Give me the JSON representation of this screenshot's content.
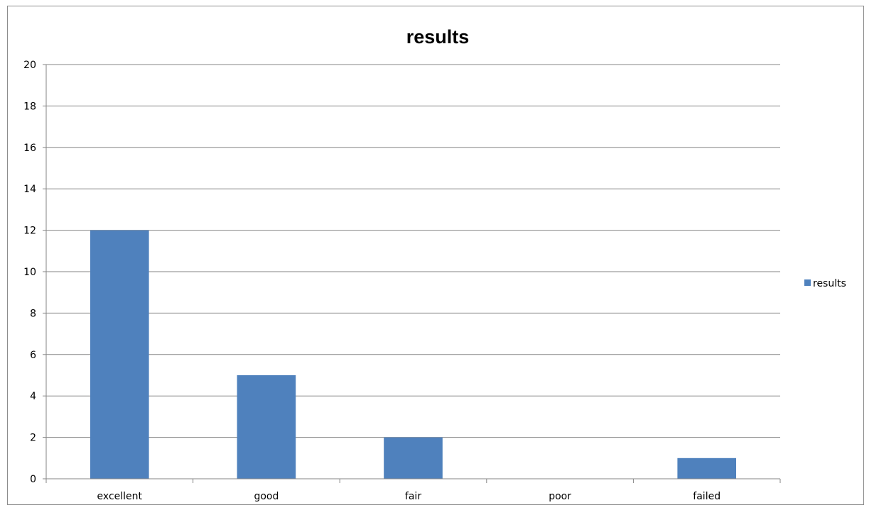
{
  "chart_data": {
    "type": "bar",
    "title": "results",
    "xlabel": "",
    "ylabel": "",
    "categories": [
      "excellent",
      "good",
      "fair",
      "poor",
      "failed"
    ],
    "series": [
      {
        "name": "results",
        "values": [
          12,
          5,
          2,
          0,
          1
        ],
        "color": "#4F81BD"
      }
    ],
    "ylim": [
      0,
      20
    ],
    "ytick_step": 2,
    "grid": true,
    "legend": "right"
  }
}
